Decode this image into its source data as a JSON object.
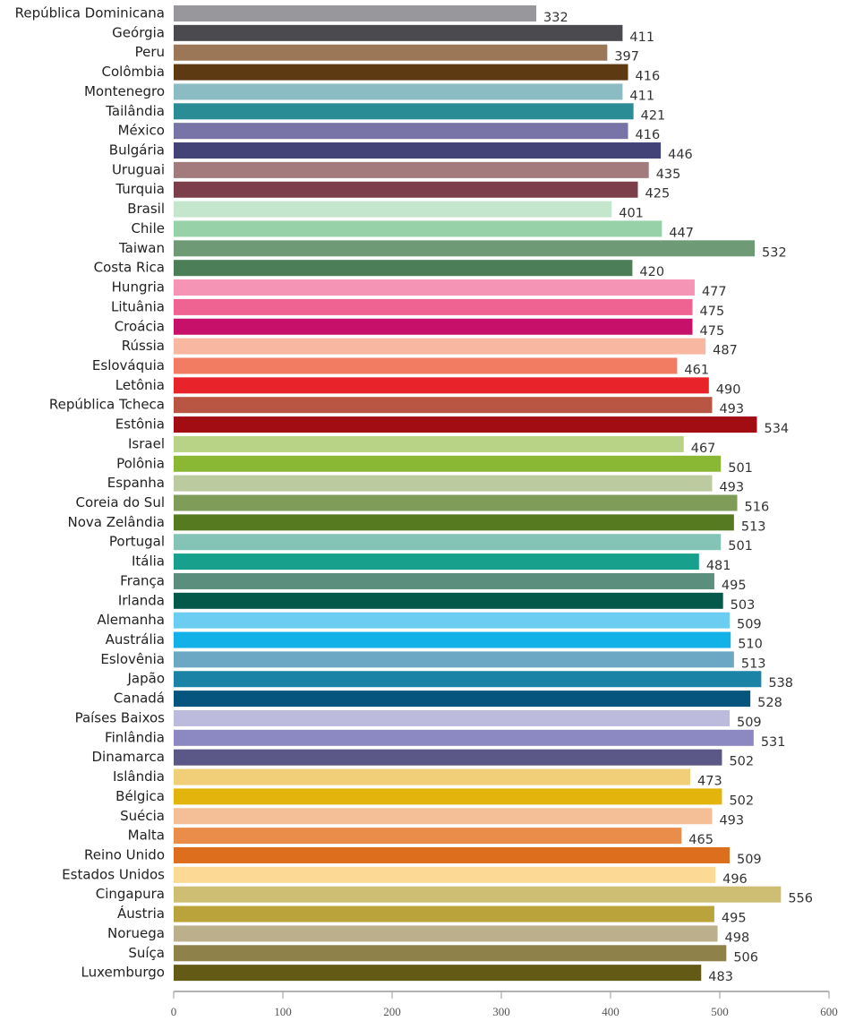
{
  "chart_data": {
    "type": "barh",
    "categories": [
      "República Dominicana",
      "Geórgia",
      "Peru",
      "Colômbia",
      "Montenegro",
      "Tailândia",
      "México",
      "Bulgária",
      "Uruguai",
      "Turquia",
      "Brasil",
      "Chile",
      "Taiwan",
      "Costa Rica",
      "Hungria",
      "Lituânia",
      "Croácia",
      "Rússia",
      "Eslováquia",
      "Letônia",
      "República Tcheca",
      "Estônia",
      "Israel",
      "Polônia",
      "Espanha",
      "Coreia do Sul",
      "Nova Zelândia",
      "Portugal",
      "Itália",
      "França",
      "Irlanda",
      "Alemanha",
      "Austrália",
      "Eslovênia",
      "Japão",
      "Canadá",
      "Países Baixos",
      "Finlândia",
      "Dinamarca",
      "Islândia",
      "Bélgica",
      "Suécia",
      "Malta",
      "Reino Unido",
      "Estados Unidos",
      "Cingapura",
      "Áustria",
      "Noruega",
      "Suíça",
      "Luxemburgo"
    ],
    "values": [
      332,
      411,
      397,
      416,
      411,
      421,
      416,
      446,
      435,
      425,
      401,
      447,
      532,
      420,
      477,
      475,
      475,
      487,
      461,
      490,
      493,
      534,
      467,
      501,
      493,
      516,
      513,
      501,
      481,
      495,
      503,
      509,
      510,
      513,
      538,
      528,
      509,
      531,
      502,
      473,
      502,
      493,
      465,
      509,
      496,
      556,
      495,
      498,
      506,
      483
    ],
    "colors": [
      "#98979c",
      "#4a4a4f",
      "#9b7757",
      "#5e3a12",
      "#8bbcc3",
      "#2a8c94",
      "#7874a8",
      "#434378",
      "#a47b7c",
      "#7b3e4a",
      "#c3e6cc",
      "#96d1a7",
      "#6e9a76",
      "#4c7f57",
      "#f594b4",
      "#ee6391",
      "#c6106a",
      "#f8b7a0",
      "#f27c61",
      "#e8232a",
      "#b85643",
      "#a10d12",
      "#b8d286",
      "#8ab734",
      "#bccb9f",
      "#7f9d58",
      "#557a20",
      "#84c4b7",
      "#17a08b",
      "#5b8e7d",
      "#05594a",
      "#6ccdf3",
      "#12b2e9",
      "#6ca8c4",
      "#1b84a6",
      "#06557f",
      "#bcbbde",
      "#8c88c2",
      "#5b5787",
      "#f0cf78",
      "#e2b40c",
      "#f4be96",
      "#ea8c4a",
      "#dd6e1e",
      "#fdd996",
      "#cebe73",
      "#b9a33a",
      "#bbb08b",
      "#8f814a",
      "#635a16"
    ],
    "xlim": [
      0,
      600
    ],
    "xticks": [
      0,
      100,
      200,
      300,
      400,
      500,
      600
    ]
  }
}
